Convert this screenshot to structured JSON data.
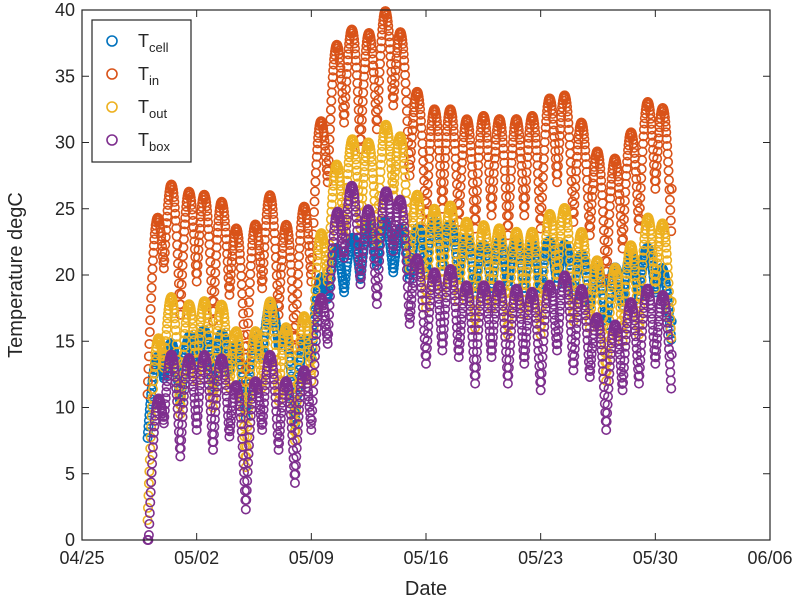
{
  "chart_data": {
    "type": "scatter",
    "title": "",
    "xlabel": "Date",
    "ylabel": "Temperature degC",
    "xlim": [
      "2019-04-25",
      "2019-06-06"
    ],
    "ylim": [
      0,
      40
    ],
    "x_ticks": [
      "04/25",
      "05/02",
      "05/09",
      "05/16",
      "05/23",
      "05/30",
      "06/06"
    ],
    "y_ticks": [
      "0",
      "5",
      "10",
      "15",
      "20",
      "25",
      "30",
      "35",
      "40"
    ],
    "grid": false,
    "legend_position": "top-left",
    "marker": "open-circle",
    "series": [
      {
        "name": "T_cell",
        "legend_main": "T",
        "legend_sub": "cell",
        "color": "#0072BD",
        "samples": [
          [
            "2019-04-29",
            9.5
          ],
          [
            "2019-04-30",
            14.0
          ],
          [
            "2019-05-01",
            12.0
          ],
          [
            "2019-05-02",
            15.0
          ],
          [
            "2019-05-03",
            13.0
          ],
          [
            "2019-05-04",
            14.5
          ],
          [
            "2019-05-05",
            11.0
          ],
          [
            "2019-05-06",
            15.5
          ],
          [
            "2019-05-07",
            16.5
          ],
          [
            "2019-05-08",
            10.5
          ],
          [
            "2019-05-09",
            15.5
          ],
          [
            "2019-05-10",
            20.0
          ],
          [
            "2019-05-11",
            20.5
          ],
          [
            "2019-05-12",
            21.5
          ],
          [
            "2019-05-13",
            22.5
          ],
          [
            "2019-05-14",
            22.0
          ],
          [
            "2019-05-15",
            21.5
          ],
          [
            "2019-05-16",
            22.0
          ],
          [
            "2019-05-17",
            22.5
          ],
          [
            "2019-05-18",
            21.5
          ],
          [
            "2019-05-19",
            20.5
          ],
          [
            "2019-05-20",
            20.5
          ],
          [
            "2019-05-21",
            21.0
          ],
          [
            "2019-05-22",
            20.5
          ],
          [
            "2019-05-23",
            20.5
          ],
          [
            "2019-05-24",
            21.0
          ],
          [
            "2019-05-25",
            20.0
          ],
          [
            "2019-05-26",
            19.5
          ],
          [
            "2019-05-27",
            18.0
          ],
          [
            "2019-05-28",
            19.5
          ],
          [
            "2019-05-29",
            20.0
          ],
          [
            "2019-05-30",
            20.5
          ],
          [
            "2019-05-31",
            16.5
          ]
        ]
      },
      {
        "name": "T_in",
        "legend_main": "T",
        "legend_sub": "in",
        "color": "#D95319",
        "samples": [
          [
            "2019-04-29",
            15.0
          ],
          [
            "2019-04-30",
            24.5
          ],
          [
            "2019-05-01",
            21.0
          ],
          [
            "2019-05-02",
            23.5
          ],
          [
            "2019-05-03",
            20.5
          ],
          [
            "2019-05-04",
            22.5
          ],
          [
            "2019-05-05",
            16.0
          ],
          [
            "2019-05-06",
            23.0
          ],
          [
            "2019-05-07",
            21.0
          ],
          [
            "2019-05-08",
            18.5
          ],
          [
            "2019-05-09",
            23.5
          ],
          [
            "2019-05-10",
            31.0
          ],
          [
            "2019-05-11",
            35.5
          ],
          [
            "2019-05-12",
            33.5
          ],
          [
            "2019-05-13",
            35.0
          ],
          [
            "2019-05-14",
            36.8
          ],
          [
            "2019-05-15",
            31.5
          ],
          [
            "2019-05-16",
            28.0
          ],
          [
            "2019-05-17",
            29.0
          ],
          [
            "2019-05-18",
            28.0
          ],
          [
            "2019-05-19",
            27.5
          ],
          [
            "2019-05-20",
            28.5
          ],
          [
            "2019-05-21",
            27.0
          ],
          [
            "2019-05-22",
            28.5
          ],
          [
            "2019-05-23",
            27.5
          ],
          [
            "2019-05-24",
            31.0
          ],
          [
            "2019-05-25",
            28.0
          ],
          [
            "2019-05-26",
            27.0
          ],
          [
            "2019-05-27",
            23.5
          ],
          [
            "2019-05-28",
            26.0
          ],
          [
            "2019-05-29",
            27.5
          ],
          [
            "2019-05-30",
            30.5
          ],
          [
            "2019-05-31",
            26.5
          ]
        ]
      },
      {
        "name": "T_out",
        "legend_main": "T",
        "legend_sub": "out",
        "color": "#EDB120",
        "samples": [
          [
            "2019-04-29",
            5.0
          ],
          [
            "2019-04-30",
            16.5
          ],
          [
            "2019-05-01",
            13.0
          ],
          [
            "2019-05-02",
            15.5
          ],
          [
            "2019-05-03",
            13.5
          ],
          [
            "2019-05-04",
            15.0
          ],
          [
            "2019-05-05",
            9.0
          ],
          [
            "2019-05-06",
            15.0
          ],
          [
            "2019-05-07",
            14.0
          ],
          [
            "2019-05-08",
            11.0
          ],
          [
            "2019-05-09",
            15.5
          ],
          [
            "2019-05-10",
            23.0
          ],
          [
            "2019-05-11",
            26.5
          ],
          [
            "2019-05-12",
            27.0
          ],
          [
            "2019-05-13",
            26.0
          ],
          [
            "2019-05-14",
            29.5
          ],
          [
            "2019-05-15",
            24.0
          ],
          [
            "2019-05-16",
            21.0
          ],
          [
            "2019-05-17",
            22.0
          ],
          [
            "2019-05-18",
            21.5
          ],
          [
            "2019-05-19",
            19.5
          ],
          [
            "2019-05-20",
            21.0
          ],
          [
            "2019-05-21",
            19.0
          ],
          [
            "2019-05-22",
            20.5
          ],
          [
            "2019-05-23",
            19.0
          ],
          [
            "2019-05-24",
            23.0
          ],
          [
            "2019-05-25",
            20.0
          ],
          [
            "2019-05-26",
            19.5
          ],
          [
            "2019-05-27",
            15.5
          ],
          [
            "2019-05-28",
            18.5
          ],
          [
            "2019-05-29",
            19.0
          ],
          [
            "2019-05-30",
            22.5
          ],
          [
            "2019-05-31",
            18.0
          ]
        ]
      },
      {
        "name": "T_box",
        "legend_main": "T",
        "legend_sub": "box",
        "color": "#7E2F8E",
        "samples": [
          [
            "2019-04-29",
            1.0
          ],
          [
            "2019-04-30",
            12.0
          ],
          [
            "2019-05-01",
            9.5
          ],
          [
            "2019-05-02",
            11.5
          ],
          [
            "2019-05-03",
            10.0
          ],
          [
            "2019-05-04",
            11.0
          ],
          [
            "2019-05-05",
            5.5
          ],
          [
            "2019-05-06",
            11.5
          ],
          [
            "2019-05-07",
            10.0
          ],
          [
            "2019-05-08",
            7.5
          ],
          [
            "2019-05-09",
            11.5
          ],
          [
            "2019-05-10",
            18.0
          ],
          [
            "2019-05-11",
            24.5
          ],
          [
            "2019-05-12",
            22.5
          ],
          [
            "2019-05-13",
            21.0
          ],
          [
            "2019-05-14",
            25.0
          ],
          [
            "2019-05-15",
            19.5
          ],
          [
            "2019-05-16",
            16.5
          ],
          [
            "2019-05-17",
            17.5
          ],
          [
            "2019-05-18",
            17.0
          ],
          [
            "2019-05-19",
            15.0
          ],
          [
            "2019-05-20",
            17.0
          ],
          [
            "2019-05-21",
            15.0
          ],
          [
            "2019-05-22",
            16.5
          ],
          [
            "2019-05-23",
            14.5
          ],
          [
            "2019-05-24",
            17.5
          ],
          [
            "2019-05-25",
            16.0
          ],
          [
            "2019-05-26",
            15.5
          ],
          [
            "2019-05-27",
            11.5
          ],
          [
            "2019-05-28",
            14.5
          ],
          [
            "2019-05-29",
            15.0
          ],
          [
            "2019-05-30",
            16.5
          ],
          [
            "2019-05-31",
            14.0
          ]
        ]
      }
    ]
  }
}
